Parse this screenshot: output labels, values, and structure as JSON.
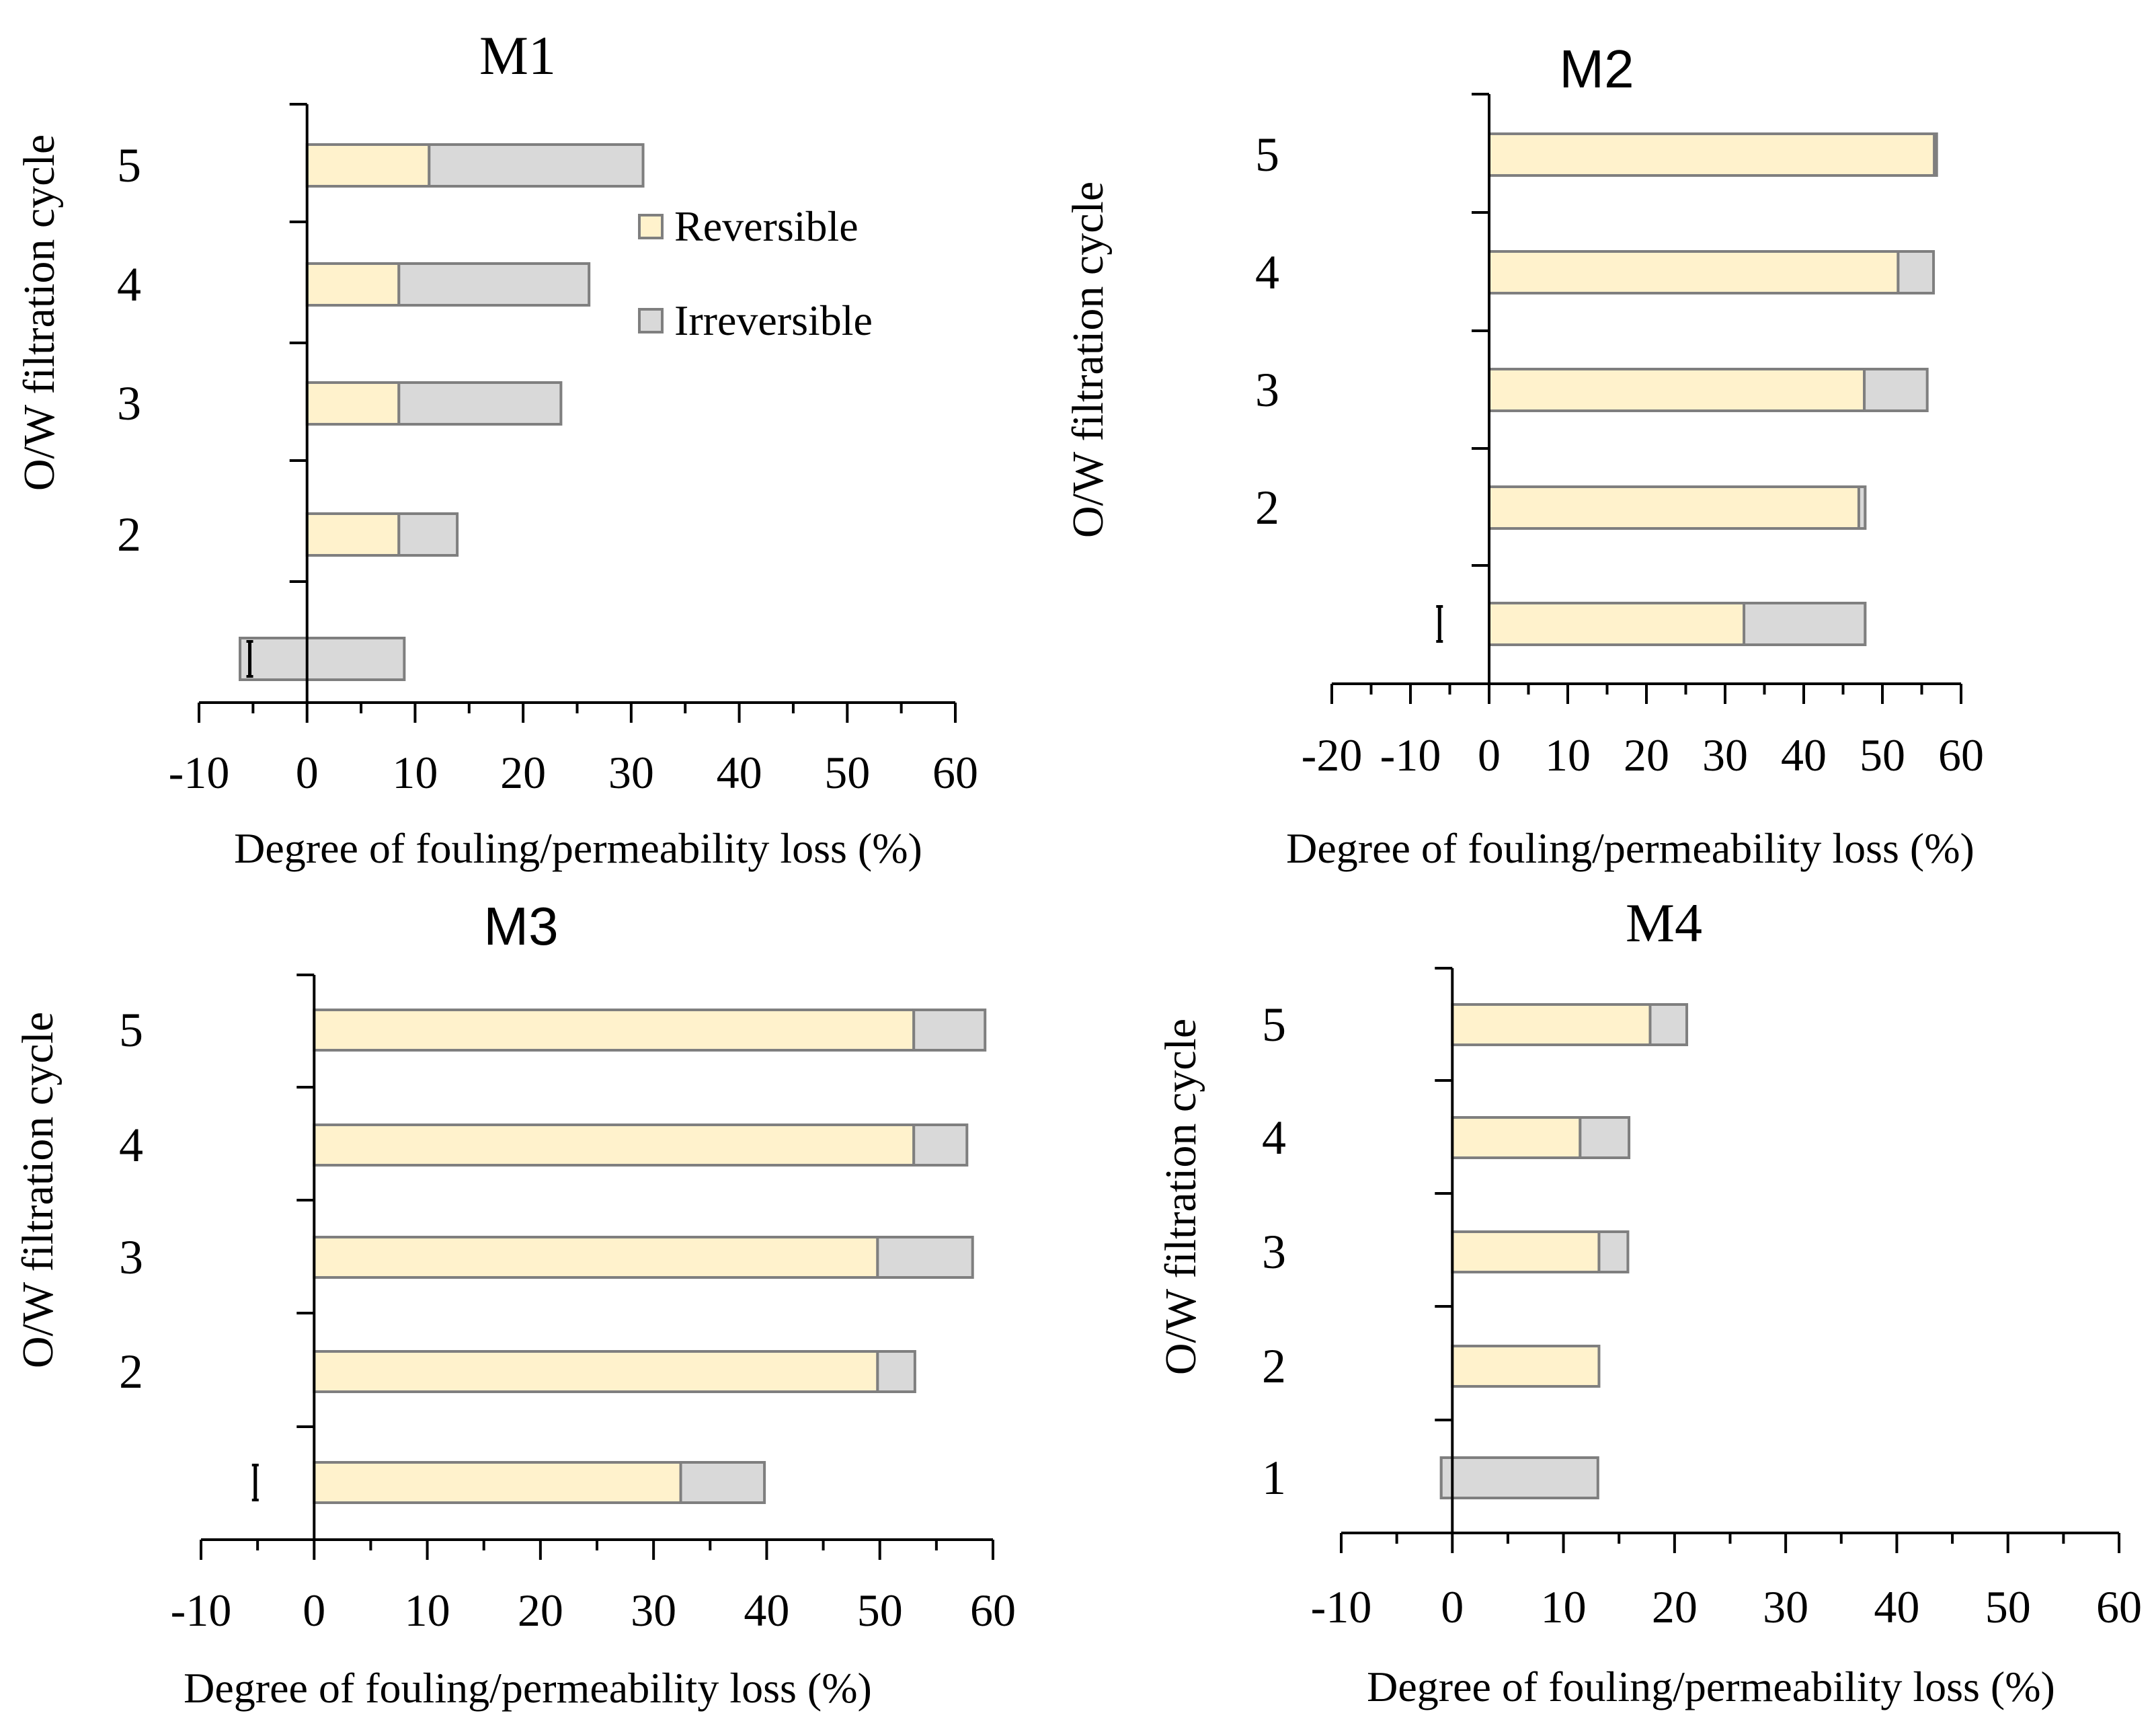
{
  "colors": {
    "reversible": "#FFF2CC",
    "irreversible": "#D9D9D9",
    "bar_stroke": "#7F7F7F",
    "axis": "#000000"
  },
  "legend": {
    "reversible_label": "Reversible",
    "irreversible_label": "Irreversible"
  },
  "chart_data": [
    {
      "id": "M1",
      "type": "bar",
      "orientation": "horizontal",
      "stacked": true,
      "title": "M1",
      "xlabel": "Degree of fouling/permeability loss (%)",
      "ylabel": "O/W filtration cycle",
      "xlim": [
        -10,
        60
      ],
      "xticks": [
        -10,
        0,
        10,
        20,
        30,
        40,
        50,
        60
      ],
      "categories": [
        "",
        "2",
        "3",
        "4",
        "5"
      ],
      "series": [
        {
          "name": "Reversible",
          "values": [
            -6.2,
            8.5,
            8.5,
            8.5,
            11.3
          ]
        },
        {
          "name": "Irreversible",
          "values": [
            15.2,
            5.4,
            15.0,
            17.6,
            19.8
          ]
        }
      ],
      "error_markers": [
        {
          "category_index": 0,
          "x": -5.3
        }
      ],
      "legend_position": "top-right"
    },
    {
      "id": "M2",
      "type": "bar",
      "orientation": "horizontal",
      "stacked": true,
      "title": "M2",
      "xlabel": "Degree of fouling/permeability loss (%)",
      "ylabel": "O/W filtration cycle",
      "xlim": [
        -20,
        60
      ],
      "xticks": [
        -20,
        -10,
        0,
        10,
        20,
        30,
        40,
        50,
        60
      ],
      "categories": [
        "",
        "2",
        "3",
        "4",
        "5"
      ],
      "series": [
        {
          "name": "Reversible",
          "values": [
            47.8,
            47.8,
            47.7,
            52.0,
            56.6
          ]
        },
        {
          "name": "Irreversible",
          "values": [
            -15.4,
            -0.8,
            8.0,
            4.5,
            0.3
          ]
        }
      ],
      "error_markers": [
        {
          "category_index": 0,
          "x": -6.3
        }
      ]
    },
    {
      "id": "M3",
      "type": "bar",
      "orientation": "horizontal",
      "stacked": true,
      "title": "M3",
      "xlabel": "Degree of fouling/permeability loss (%)",
      "ylabel": "O/W filtration cycle",
      "xlim": [
        -10,
        60
      ],
      "xticks": [
        -10,
        0,
        10,
        20,
        30,
        40,
        50,
        60
      ],
      "categories": [
        "",
        "2",
        "3",
        "4",
        "5"
      ],
      "series": [
        {
          "name": "Reversible",
          "values": [
            39.8,
            49.8,
            49.8,
            53.0,
            53.0
          ]
        },
        {
          "name": "Irreversible",
          "values": [
            -7.4,
            3.3,
            8.4,
            4.7,
            6.3
          ]
        }
      ],
      "error_markers": [
        {
          "category_index": 0,
          "x": -5.2
        }
      ]
    },
    {
      "id": "M4",
      "type": "bar",
      "orientation": "horizontal",
      "stacked": true,
      "title": "M4",
      "xlabel": "Degree of fouling/permeability loss (%)",
      "ylabel": "O/W filtration cycle",
      "xlim": [
        -10,
        60
      ],
      "xticks": [
        -10,
        0,
        10,
        20,
        30,
        40,
        50,
        60
      ],
      "categories": [
        "1",
        "2",
        "3",
        "4",
        "5"
      ],
      "series": [
        {
          "name": "Reversible",
          "values": [
            -1.0,
            13.2,
            13.2,
            11.5,
            17.8
          ]
        },
        {
          "name": "Irreversible",
          "values": [
            14.1,
            0.0,
            2.6,
            4.4,
            3.3
          ]
        }
      ],
      "error_markers": []
    }
  ]
}
